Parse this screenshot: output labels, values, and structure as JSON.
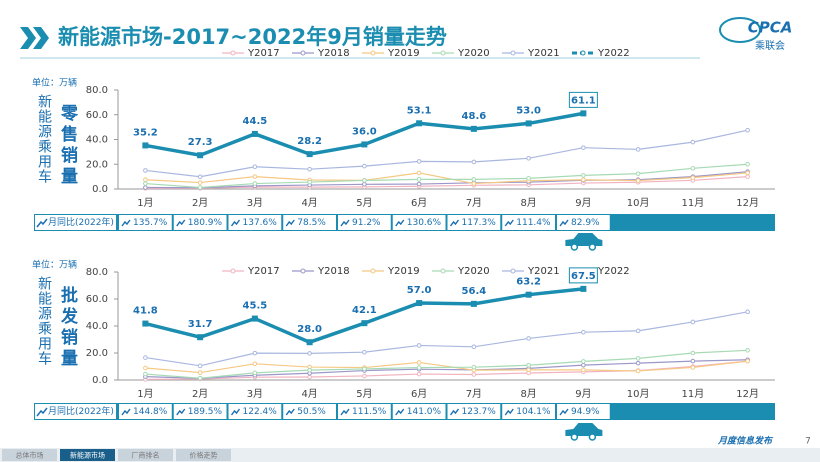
{
  "header": {
    "title": "新能源市场-2017~2022年9月销量走势",
    "logo": "CPCA",
    "logo_sub": "乘联会"
  },
  "chart_data": [
    {
      "type": "line",
      "unit": "单位：万辆",
      "side_label": "新能源乘用车",
      "chart_label": "零售销量",
      "categories": [
        "1月",
        "2月",
        "3月",
        "4月",
        "5月",
        "6月",
        "7月",
        "8月",
        "9月",
        "10月",
        "11月",
        "12月"
      ],
      "ylim": [
        0,
        80
      ],
      "yticks": [
        {
          "value": 0,
          "label": "0.0"
        },
        {
          "value": 20,
          "label": "20.0"
        },
        {
          "value": 40,
          "label": "40.0"
        },
        {
          "value": 60,
          "label": "60.0"
        },
        {
          "value": 80,
          "label": "80.0"
        }
      ],
      "series": [
        {
          "name": "Y2017",
          "color": "#f2b3c0",
          "values": [
            0.5,
            0.6,
            1.5,
            1.5,
            1.7,
            2.2,
            3,
            3.4,
            4.8,
            5.5,
            7,
            10
          ]
        },
        {
          "name": "Y2018",
          "color": "#9b97c9",
          "values": [
            1.2,
            1,
            2.5,
            3.2,
            3.8,
            4,
            5,
            5.5,
            7,
            7.5,
            10,
            14
          ]
        },
        {
          "name": "Y2019",
          "color": "#f5c883",
          "values": [
            7.5,
            5.2,
            10,
            7.3,
            7,
            13,
            4.4,
            6.7,
            7.5,
            6.8,
            9.2,
            13
          ]
        },
        {
          "name": "Y2020",
          "color": "#a6dab4",
          "values": [
            4.4,
            1.2,
            4.4,
            5.6,
            6.9,
            7.8,
            7.8,
            8.6,
            11,
            12.4,
            16.7,
            20
          ]
        },
        {
          "name": "Y2021",
          "color": "#a9b7e0",
          "values": [
            15,
            9.9,
            18,
            16,
            18.5,
            22.3,
            21.9,
            24.8,
            33.4,
            32,
            37.9,
            47.5
          ]
        },
        {
          "name": "Y2022",
          "color": "#1a8db0",
          "values": [
            35.2,
            27.3,
            44.5,
            28.2,
            36.0,
            53.1,
            48.6,
            53.0,
            61.1,
            null,
            null,
            null
          ],
          "value_labels": [
            "35.2",
            "27.3",
            "44.5",
            "28.2",
            "36.0",
            "53.1",
            "48.6",
            "53.0",
            "61.1",
            null,
            null,
            null
          ]
        }
      ],
      "yoy_label": "月同比(2022年)",
      "yoy_values": [
        "135.7%",
        "180.9%",
        "137.6%",
        "78.5%",
        "91.2%",
        "130.6%",
        "117.3%",
        "111.4%",
        "82.9%"
      ]
    },
    {
      "type": "line",
      "unit": "单位：万辆",
      "side_label": "新能源乘用车",
      "chart_label": "批发销量",
      "categories": [
        "1月",
        "2月",
        "3月",
        "4月",
        "5月",
        "6月",
        "7月",
        "8月",
        "9月",
        "10月",
        "11月",
        "12月"
      ],
      "ylim": [
        0,
        80
      ],
      "yticks": [
        {
          "value": 0,
          "label": "0.0"
        },
        {
          "value": 20,
          "label": "20.0"
        },
        {
          "value": 40,
          "label": "40.0"
        },
        {
          "value": 60,
          "label": "60.0"
        },
        {
          "value": 80,
          "label": "80.0"
        }
      ],
      "series": [
        {
          "name": "Y2017",
          "color": "#f2b3c0",
          "values": [
            0.5,
            0.7,
            2.1,
            2.2,
            3,
            4.4,
            4.1,
            5.2,
            6,
            7,
            10,
            14
          ]
        },
        {
          "name": "Y2018",
          "color": "#9b97c9",
          "values": [
            2.5,
            1.2,
            3.5,
            5,
            7,
            8,
            7.5,
            8.6,
            11,
            12.5,
            14,
            15
          ]
        },
        {
          "name": "Y2019",
          "color": "#f5c883",
          "values": [
            8.9,
            5.5,
            12,
            9.6,
            9.2,
            13,
            7.3,
            7.5,
            7.5,
            6.7,
            9.3,
            14
          ]
        },
        {
          "name": "Y2020",
          "color": "#a6dab4",
          "values": [
            4.4,
            1.3,
            5.3,
            7.3,
            8.2,
            9.2,
            9.5,
            10.9,
            13.8,
            16,
            20,
            22
          ]
        },
        {
          "name": "Y2021",
          "color": "#a9b7e0",
          "values": [
            16.6,
            10.5,
            19.9,
            19.7,
            20.6,
            25.6,
            24.6,
            30.8,
            35.4,
            36.4,
            43,
            50.5
          ]
        },
        {
          "name": "Y2022",
          "color": "#1a8db0",
          "values": [
            41.8,
            31.7,
            45.5,
            28.0,
            42.1,
            57.0,
            56.4,
            63.2,
            67.5,
            null,
            null,
            null
          ],
          "value_labels": [
            "41.8",
            "31.7",
            "45.5",
            "28.0",
            "42.1",
            "57.0",
            "56.4",
            "63.2",
            "67.5",
            null,
            null,
            null
          ]
        }
      ],
      "yoy_label": "月同比(2022年)",
      "yoy_values": [
        "144.8%",
        "189.5%",
        "122.4%",
        "50.5%",
        "111.5%",
        "141.0%",
        "123.7%",
        "104.1%",
        "94.9%"
      ]
    }
  ],
  "footer": {
    "tabs": [
      "总体市场",
      "新能源市场",
      "厂商排名",
      "价格走势"
    ],
    "active_tab": 1,
    "note": "月度信息发布",
    "page": "7"
  }
}
